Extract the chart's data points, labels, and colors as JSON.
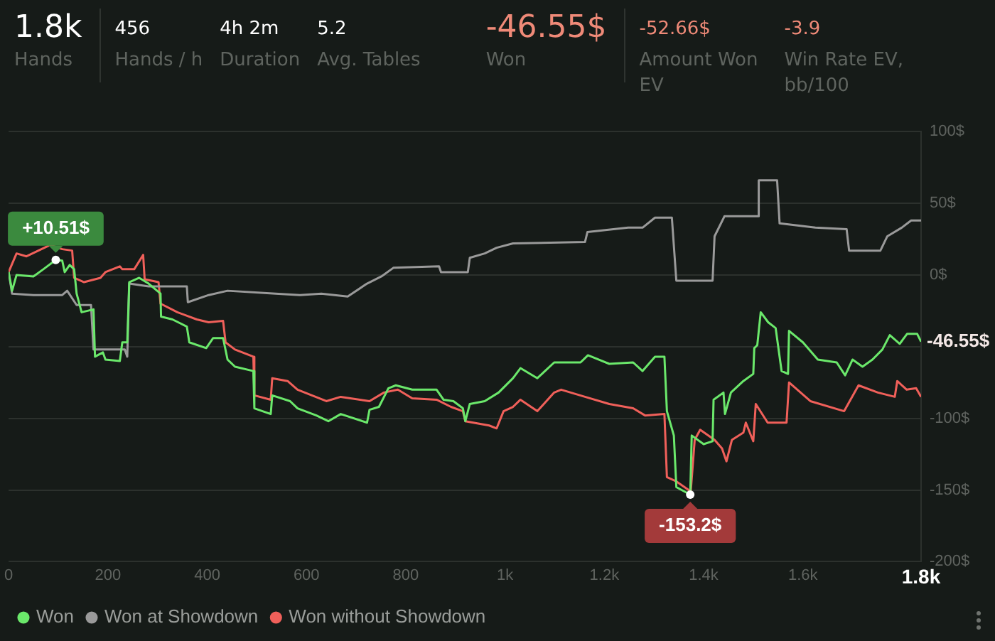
{
  "chart_data": {
    "type": "line",
    "annotations": [
      "1.8k",
      "Hands",
      "456",
      "Hands / h",
      "4h 2m",
      "Duration",
      "5.2",
      "Avg. Tables",
      "-46.55$",
      "Won",
      "-52.66$",
      "Amount Won EV",
      "-3.9",
      "Win Rate EV, bb/100",
      {
        "text": "+10.51$",
        "x": 95,
        "y": 10.51
      },
      {
        "text": "-153.2$",
        "x": 1373,
        "y": -153.2
      },
      {
        "text": "-46.55$",
        "x": 1838,
        "y": -46.55
      }
    ],
    "series": [
      {
        "name": "Won",
        "color": "#6be86b",
        "x": [
          0,
          7,
          16,
          50,
          70,
          95,
          108,
          113,
          123,
          132,
          137,
          147,
          171,
          174,
          190,
          195,
          224,
          229,
          239,
          243,
          263,
          282,
          306,
          307,
          330,
          359,
          364,
          398,
          412,
          432,
          441,
          456,
          493,
          495,
          528,
          531,
          567,
          582,
          620,
          644,
          669,
          722,
          727,
          746,
          765,
          780,
          813,
          862,
          876,
          896,
          915,
          920,
          929,
          959,
          987,
          1016,
          1031,
          1065,
          1099,
          1152,
          1167,
          1210,
          1258,
          1277,
          1302,
          1321,
          1326,
          1340,
          1345,
          1373,
          1376,
          1400,
          1418,
          1420,
          1440,
          1443,
          1455,
          1480,
          1500,
          1502,
          1508,
          1515,
          1530,
          1545,
          1557,
          1570,
          1572,
          1600,
          1630,
          1668,
          1685,
          1700,
          1720,
          1740,
          1760,
          1775,
          1795,
          1810,
          1830,
          1838
        ],
        "values": [
          2,
          -11,
          0,
          -1,
          4,
          10.51,
          10,
          2,
          7,
          4,
          -13,
          -26,
          -24,
          -57,
          -54,
          -59,
          -60,
          -47,
          -47,
          -5,
          -2,
          -6,
          -13,
          -29,
          -31,
          -36,
          -47,
          -51,
          -44,
          -44,
          -59,
          -64,
          -67,
          -93,
          -97,
          -84,
          -88,
          -93,
          -98,
          -102,
          -97,
          -103,
          -94,
          -92,
          -79,
          -77,
          -80,
          -80,
          -87,
          -88,
          -93,
          -102,
          -90,
          -88,
          -82,
          -72,
          -65,
          -72,
          -61,
          -61,
          -56,
          -62,
          -61,
          -67,
          -57,
          -57,
          -95,
          -112,
          -148,
          -153.2,
          -112,
          -118,
          -116,
          -87,
          -82,
          -97,
          -82,
          -74,
          -69,
          -51,
          -49,
          -26,
          -33,
          -37,
          -67,
          -69,
          -39,
          -47,
          -59,
          -61,
          -70,
          -59,
          -64,
          -59,
          -52,
          -42,
          -48,
          -41,
          -41,
          -46.55
        ]
      },
      {
        "name": "Won at Showdown",
        "color": "#9a9a9a",
        "x": [
          0,
          7,
          50,
          108,
          118,
          137,
          166,
          171,
          234,
          239,
          243,
          282,
          359,
          361,
          403,
          441,
          538,
          587,
          630,
          683,
          722,
          751,
          775,
          867,
          871,
          925,
          929,
          959,
          983,
          1016,
          1161,
          1166,
          1248,
          1277,
          1302,
          1336,
          1345,
          1418,
          1422,
          1442,
          1509,
          1511,
          1548,
          1553,
          1625,
          1688,
          1693,
          1756,
          1770,
          1799,
          1818,
          1838
        ],
        "values": [
          2,
          -13,
          -14,
          -14,
          -11,
          -21,
          -21,
          -52,
          -52,
          -57,
          -6,
          -8,
          -8,
          -19,
          -14,
          -11,
          -13,
          -14,
          -13,
          -15,
          -6,
          -1,
          5,
          6,
          2,
          2,
          12,
          15,
          19,
          22,
          23,
          30,
          33,
          33,
          40,
          40,
          -4,
          -4,
          27,
          41,
          41,
          66,
          66,
          36,
          33,
          32,
          17,
          17,
          27,
          33,
          38,
          38
        ]
      },
      {
        "name": "Won without Showdown",
        "color": "#f0605a",
        "x": [
          0,
          16,
          36,
          60,
          84,
          108,
          128,
          132,
          152,
          185,
          195,
          224,
          229,
          253,
          271,
          274,
          302,
          306,
          340,
          379,
          403,
          432,
          437,
          456,
          493,
          495,
          528,
          531,
          562,
          582,
          640,
          669,
          727,
          756,
          784,
          813,
          862,
          891,
          915,
          920,
          968,
          983,
          997,
          1016,
          1031,
          1065,
          1099,
          1113,
          1161,
          1210,
          1258,
          1282,
          1321,
          1326,
          1345,
          1374,
          1382,
          1393,
          1422,
          1437,
          1446,
          1457,
          1480,
          1485,
          1500,
          1505,
          1529,
          1567,
          1572,
          1615,
          1683,
          1712,
          1751,
          1785,
          1790,
          1809,
          1828,
          1838
        ],
        "values": [
          2,
          15,
          13,
          17,
          21,
          18,
          17,
          -2,
          -5,
          -2,
          2,
          6,
          4,
          4,
          14,
          -3,
          -5,
          -20,
          -26,
          -31,
          -33,
          -32,
          -47,
          -52,
          -57,
          -84,
          -87,
          -72,
          -74,
          -80,
          -88,
          -85,
          -88,
          -82,
          -80,
          -86,
          -87,
          -92,
          -95,
          -102,
          -105,
          -107,
          -95,
          -92,
          -87,
          -95,
          -82,
          -80,
          -85,
          -90,
          -93,
          -98,
          -97,
          -141,
          -144,
          -151,
          -115,
          -108,
          -115,
          -121,
          -130,
          -115,
          -110,
          -103,
          -116,
          -90,
          -103,
          -103,
          -75,
          -88,
          -95,
          -77,
          -82,
          -85,
          -74,
          -80,
          -79,
          -85
        ]
      }
    ],
    "xlim": [
      0,
      1838
    ],
    "xticks": [
      0,
      200,
      400,
      600,
      800,
      {
        "value": 1000,
        "label": "1k"
      },
      {
        "value": 1200,
        "label": "1.2k"
      },
      {
        "value": 1400,
        "label": "1.4k"
      },
      {
        "value": 1600,
        "label": "1.6k"
      },
      {
        "value": 1838,
        "label": "1.8k"
      }
    ],
    "ylim": [
      -200,
      100
    ],
    "yticks": [
      {
        "value": -200,
        "label": "-200$"
      },
      {
        "value": -150,
        "label": "-150$"
      },
      {
        "value": -100,
        "label": "-100$"
      },
      {
        "value": -50,
        "label": null
      },
      {
        "value": 0,
        "label": "0$"
      },
      {
        "value": 50,
        "label": "50$"
      },
      {
        "value": 100,
        "label": "100$"
      }
    ],
    "grid": "y",
    "legend": "bottom left",
    "marker": "none",
    "line_style": "solid"
  }
}
